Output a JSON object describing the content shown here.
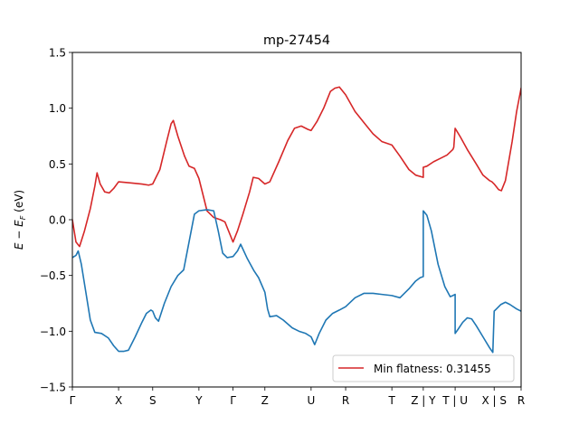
{
  "chart_data": {
    "type": "line",
    "title": "mp-27454",
    "ylabel": "E − E_F (eV)",
    "ylabel_parts": {
      "e": "E",
      "minus": " − ",
      "ef": "E",
      "ef_sub": "F",
      "unit": " (eV)"
    },
    "xlabel": "",
    "xlim": [
      0,
      1
    ],
    "ylim": [
      -1.5,
      1.5
    ],
    "y_ticks": [
      {
        "value": -1.5,
        "label": "−1.5"
      },
      {
        "value": -1.0,
        "label": "−1.0"
      },
      {
        "value": -0.5,
        "label": "−0.5"
      },
      {
        "value": 0.0,
        "label": "0.0"
      },
      {
        "value": 0.5,
        "label": "0.5"
      },
      {
        "value": 1.0,
        "label": "1.0"
      },
      {
        "value": 1.5,
        "label": "1.5"
      }
    ],
    "x_ticks": [
      {
        "value": 0.0,
        "label": "Γ"
      },
      {
        "value": 0.103,
        "label": "X"
      },
      {
        "value": 0.179,
        "label": "S"
      },
      {
        "value": 0.282,
        "label": "Y"
      },
      {
        "value": 0.358,
        "label": "Γ"
      },
      {
        "value": 0.429,
        "label": "Z"
      },
      {
        "value": 0.532,
        "label": "U"
      },
      {
        "value": 0.609,
        "label": "R"
      },
      {
        "value": 0.712,
        "label": "T"
      },
      {
        "value": 0.782,
        "label": "Z | Y"
      },
      {
        "value": 0.853,
        "label": "T | U"
      },
      {
        "value": 0.94,
        "label": "X | S"
      },
      {
        "value": 1.0,
        "label": "R"
      }
    ],
    "grid": false,
    "legend": {
      "position": "lower-right",
      "entries": [
        {
          "label": "Min flatness: 0.31455",
          "color": "#d62728"
        }
      ]
    },
    "series": [
      {
        "color": "#d62728",
        "points": [
          [
            0.0,
            0.0
          ],
          [
            0.008,
            -0.2
          ],
          [
            0.016,
            -0.24
          ],
          [
            0.027,
            -0.1
          ],
          [
            0.04,
            0.1
          ],
          [
            0.05,
            0.3
          ],
          [
            0.055,
            0.42
          ],
          [
            0.062,
            0.32
          ],
          [
            0.072,
            0.25
          ],
          [
            0.082,
            0.24
          ],
          [
            0.092,
            0.28
          ],
          [
            0.103,
            0.34
          ],
          [
            0.13,
            0.33
          ],
          [
            0.155,
            0.32
          ],
          [
            0.17,
            0.31
          ],
          [
            0.179,
            0.32
          ],
          [
            0.195,
            0.45
          ],
          [
            0.21,
            0.7
          ],
          [
            0.22,
            0.86
          ],
          [
            0.225,
            0.89
          ],
          [
            0.235,
            0.75
          ],
          [
            0.25,
            0.57
          ],
          [
            0.26,
            0.48
          ],
          [
            0.272,
            0.46
          ],
          [
            0.282,
            0.37
          ],
          [
            0.3,
            0.08
          ],
          [
            0.315,
            0.02
          ],
          [
            0.33,
            0.0
          ],
          [
            0.34,
            -0.02
          ],
          [
            0.348,
            -0.1
          ],
          [
            0.358,
            -0.2
          ],
          [
            0.368,
            -0.1
          ],
          [
            0.38,
            0.05
          ],
          [
            0.395,
            0.25
          ],
          [
            0.403,
            0.38
          ],
          [
            0.415,
            0.37
          ],
          [
            0.429,
            0.32
          ],
          [
            0.44,
            0.34
          ],
          [
            0.46,
            0.52
          ],
          [
            0.48,
            0.71
          ],
          [
            0.495,
            0.82
          ],
          [
            0.51,
            0.84
          ],
          [
            0.525,
            0.81
          ],
          [
            0.532,
            0.8
          ],
          [
            0.545,
            0.88
          ],
          [
            0.56,
            1.0
          ],
          [
            0.575,
            1.15
          ],
          [
            0.585,
            1.18
          ],
          [
            0.595,
            1.19
          ],
          [
            0.609,
            1.12
          ],
          [
            0.63,
            0.97
          ],
          [
            0.65,
            0.87
          ],
          [
            0.67,
            0.77
          ],
          [
            0.69,
            0.7
          ],
          [
            0.712,
            0.67
          ],
          [
            0.73,
            0.57
          ],
          [
            0.75,
            0.45
          ],
          [
            0.765,
            0.4
          ],
          [
            0.782,
            0.38
          ],
          [
            0.782,
            0.47
          ],
          [
            0.79,
            0.48
          ],
          [
            0.805,
            0.52
          ],
          [
            0.82,
            0.55
          ],
          [
            0.835,
            0.58
          ],
          [
            0.848,
            0.63
          ],
          [
            0.85,
            0.65
          ],
          [
            0.853,
            0.82
          ],
          [
            0.865,
            0.74
          ],
          [
            0.88,
            0.63
          ],
          [
            0.9,
            0.5
          ],
          [
            0.915,
            0.4
          ],
          [
            0.93,
            0.35
          ],
          [
            0.935,
            0.34
          ],
          [
            0.94,
            0.32
          ],
          [
            0.95,
            0.27
          ],
          [
            0.956,
            0.26
          ],
          [
            0.965,
            0.35
          ],
          [
            0.98,
            0.7
          ],
          [
            0.99,
            0.97
          ],
          [
            1.0,
            1.18
          ]
        ]
      },
      {
        "color": "#1f77b4",
        "points": [
          [
            0.0,
            -0.34
          ],
          [
            0.008,
            -0.32
          ],
          [
            0.013,
            -0.28
          ],
          [
            0.02,
            -0.4
          ],
          [
            0.03,
            -0.65
          ],
          [
            0.04,
            -0.9
          ],
          [
            0.05,
            -1.01
          ],
          [
            0.065,
            -1.02
          ],
          [
            0.08,
            -1.06
          ],
          [
            0.092,
            -1.13
          ],
          [
            0.103,
            -1.18
          ],
          [
            0.115,
            -1.18
          ],
          [
            0.125,
            -1.17
          ],
          [
            0.14,
            -1.05
          ],
          [
            0.155,
            -0.92
          ],
          [
            0.165,
            -0.84
          ],
          [
            0.175,
            -0.81
          ],
          [
            0.179,
            -0.82
          ],
          [
            0.185,
            -0.88
          ],
          [
            0.192,
            -0.91
          ],
          [
            0.205,
            -0.75
          ],
          [
            0.22,
            -0.6
          ],
          [
            0.235,
            -0.5
          ],
          [
            0.248,
            -0.45
          ],
          [
            0.26,
            -0.2
          ],
          [
            0.272,
            0.05
          ],
          [
            0.282,
            0.08
          ],
          [
            0.3,
            0.09
          ],
          [
            0.315,
            0.08
          ],
          [
            0.325,
            -0.1
          ],
          [
            0.335,
            -0.3
          ],
          [
            0.345,
            -0.34
          ],
          [
            0.358,
            -0.33
          ],
          [
            0.368,
            -0.28
          ],
          [
            0.375,
            -0.22
          ],
          [
            0.39,
            -0.35
          ],
          [
            0.405,
            -0.46
          ],
          [
            0.415,
            -0.52
          ],
          [
            0.429,
            -0.65
          ],
          [
            0.435,
            -0.8
          ],
          [
            0.44,
            -0.87
          ],
          [
            0.455,
            -0.86
          ],
          [
            0.47,
            -0.9
          ],
          [
            0.49,
            -0.97
          ],
          [
            0.505,
            -1.0
          ],
          [
            0.52,
            -1.02
          ],
          [
            0.532,
            -1.05
          ],
          [
            0.54,
            -1.12
          ],
          [
            0.55,
            -1.02
          ],
          [
            0.565,
            -0.9
          ],
          [
            0.58,
            -0.84
          ],
          [
            0.595,
            -0.81
          ],
          [
            0.609,
            -0.78
          ],
          [
            0.63,
            -0.7
          ],
          [
            0.65,
            -0.66
          ],
          [
            0.67,
            -0.66
          ],
          [
            0.69,
            -0.67
          ],
          [
            0.712,
            -0.68
          ],
          [
            0.73,
            -0.7
          ],
          [
            0.75,
            -0.62
          ],
          [
            0.765,
            -0.55
          ],
          [
            0.775,
            -0.52
          ],
          [
            0.782,
            -0.51
          ],
          [
            0.782,
            0.08
          ],
          [
            0.79,
            0.04
          ],
          [
            0.8,
            -0.1
          ],
          [
            0.815,
            -0.4
          ],
          [
            0.83,
            -0.6
          ],
          [
            0.842,
            -0.69
          ],
          [
            0.848,
            -0.68
          ],
          [
            0.853,
            -0.67
          ],
          [
            0.853,
            -1.02
          ],
          [
            0.86,
            -0.98
          ],
          [
            0.87,
            -0.92
          ],
          [
            0.88,
            -0.88
          ],
          [
            0.89,
            -0.89
          ],
          [
            0.9,
            -0.95
          ],
          [
            0.915,
            -1.05
          ],
          [
            0.93,
            -1.15
          ],
          [
            0.937,
            -1.19
          ],
          [
            0.94,
            -0.82
          ],
          [
            0.945,
            -0.8
          ],
          [
            0.955,
            -0.76
          ],
          [
            0.965,
            -0.74
          ],
          [
            0.975,
            -0.76
          ],
          [
            0.99,
            -0.8
          ],
          [
            1.0,
            -0.82
          ]
        ]
      }
    ]
  }
}
